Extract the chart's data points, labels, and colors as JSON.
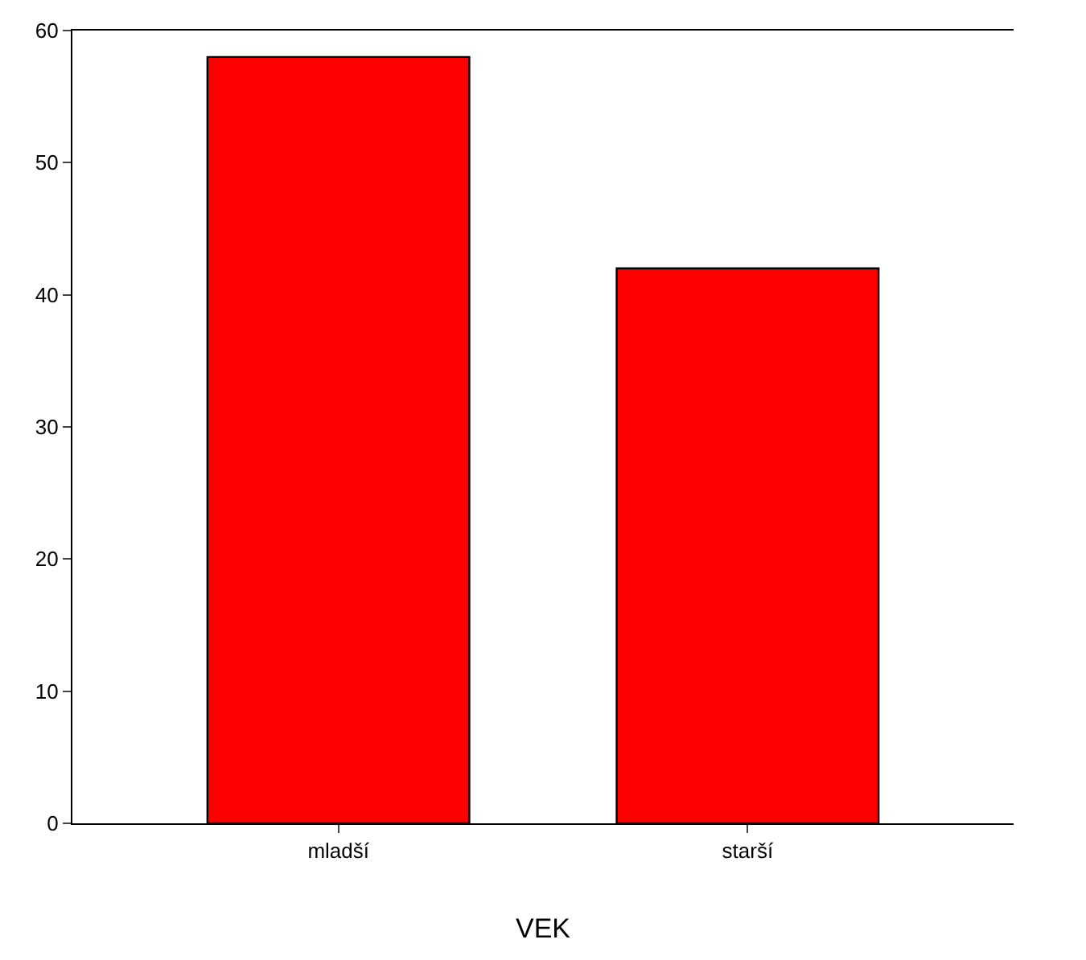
{
  "chart_data": {
    "type": "bar",
    "xlabel": "VEK",
    "categories": [
      "mladší",
      "starší"
    ],
    "values": [
      58,
      42
    ],
    "color": "#ff0000",
    "ylim": [
      0,
      60
    ],
    "yticks": [
      0,
      10,
      20,
      30,
      40,
      50,
      60
    ]
  }
}
